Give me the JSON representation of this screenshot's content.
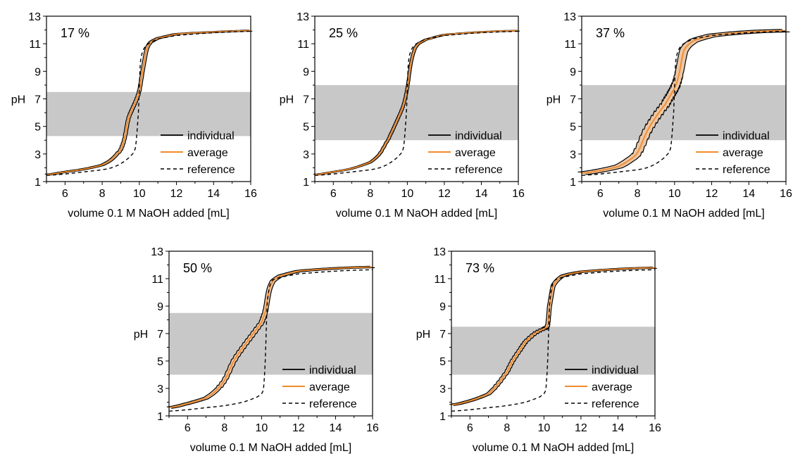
{
  "colors": {
    "individual": "#000000",
    "average": "#f08a2c",
    "reference": "#000000",
    "band": "#c8c8c8",
    "envelope": "#ecc7a6"
  },
  "chart_data": [
    {
      "type": "line",
      "title": "17 %",
      "xlabel": "volume 0.1 M NaOH added [mL]",
      "ylabel": "pH",
      "xlim": [
        5,
        16
      ],
      "ylim": [
        1,
        13
      ],
      "xticks": [
        "6",
        "8",
        "10",
        "12",
        "14",
        "16"
      ],
      "yticks": [
        "1",
        "3",
        "5",
        "7",
        "9",
        "11",
        "13"
      ],
      "shaded_band": [
        4.3,
        7.5
      ],
      "legend": [
        "individual",
        "average",
        "reference"
      ],
      "legend_position": "bottom-right",
      "series": [
        {
          "name": "average",
          "x": [
            5,
            6,
            7,
            8,
            8.5,
            9,
            9.2,
            9.4,
            9.6,
            9.8,
            10,
            10.2,
            10.4,
            10.6,
            11,
            12,
            14,
            16
          ],
          "y": [
            1.5,
            1.7,
            1.9,
            2.2,
            2.6,
            3.3,
            4.1,
            5.5,
            6.2,
            6.8,
            7.6,
            9.2,
            10.6,
            11.1,
            11.4,
            11.7,
            11.85,
            11.95
          ],
          "spread": 0.25
        },
        {
          "name": "reference",
          "x": [
            5,
            6,
            7,
            8,
            8.5,
            9,
            9.5,
            9.8,
            9.95,
            10.05,
            10.2,
            10.4,
            10.6,
            11,
            12,
            14,
            16
          ],
          "y": [
            1.45,
            1.55,
            1.7,
            1.85,
            2.0,
            2.3,
            2.8,
            3.5,
            6.0,
            9.5,
            10.5,
            10.9,
            11.1,
            11.35,
            11.6,
            11.8,
            11.9
          ]
        }
      ]
    },
    {
      "type": "line",
      "title": "25 %",
      "xlabel": "volume 0.1 M NaOH added [mL]",
      "ylabel": "pH",
      "xlim": [
        5,
        16
      ],
      "ylim": [
        1,
        13
      ],
      "xticks": [
        "6",
        "8",
        "10",
        "12",
        "14",
        "16"
      ],
      "yticks": [
        "1",
        "3",
        "5",
        "7",
        "9",
        "11",
        "13"
      ],
      "shaded_band": [
        4.0,
        8.0
      ],
      "legend": [
        "individual",
        "average",
        "reference"
      ],
      "legend_position": "bottom-right",
      "series": [
        {
          "name": "average",
          "x": [
            5,
            6,
            7,
            8,
            8.5,
            9,
            9.2,
            9.4,
            9.6,
            9.8,
            10,
            10.2,
            10.4,
            10.6,
            11,
            12,
            14,
            16
          ],
          "y": [
            1.5,
            1.7,
            1.95,
            2.4,
            3.0,
            4.1,
            4.7,
            5.3,
            5.9,
            6.6,
            7.8,
            9.6,
            10.6,
            11.0,
            11.3,
            11.65,
            11.85,
            11.95
          ],
          "spread": 0.2
        },
        {
          "name": "reference",
          "x": [
            5,
            6,
            7,
            8,
            8.5,
            9,
            9.5,
            9.8,
            9.95,
            10.05,
            10.2,
            10.4,
            10.6,
            11,
            12,
            14,
            16
          ],
          "y": [
            1.45,
            1.55,
            1.7,
            1.85,
            2.0,
            2.3,
            2.8,
            3.5,
            6.0,
            9.5,
            10.5,
            10.9,
            11.1,
            11.35,
            11.6,
            11.8,
            11.9
          ]
        }
      ]
    },
    {
      "type": "line",
      "title": "37 %",
      "xlabel": "volume 0.1 M NaOH added [mL]",
      "ylabel": "pH",
      "xlim": [
        5,
        16
      ],
      "ylim": [
        1,
        13
      ],
      "xticks": [
        "6",
        "8",
        "10",
        "12",
        "14",
        "16"
      ],
      "yticks": [
        "1",
        "3",
        "5",
        "7",
        "9",
        "11",
        "13"
      ],
      "shaded_band": [
        4.0,
        8.0
      ],
      "legend": [
        "individual",
        "average",
        "reference"
      ],
      "legend_position": "bottom-right",
      "series": [
        {
          "name": "average",
          "x": [
            5,
            6,
            7,
            7.5,
            8,
            8.5,
            9,
            9.5,
            9.8,
            10,
            10.2,
            10.5,
            11,
            12,
            14,
            16
          ],
          "y": [
            1.6,
            1.8,
            2.1,
            2.5,
            3.1,
            4.6,
            5.7,
            6.6,
            7.3,
            7.8,
            8.6,
            10.5,
            11.2,
            11.6,
            11.85,
            11.95
          ],
          "spread": 0.6
        },
        {
          "name": "reference",
          "x": [
            5,
            6,
            7,
            8,
            8.5,
            9,
            9.5,
            9.8,
            9.95,
            10.05,
            10.2,
            10.4,
            10.6,
            11,
            12,
            14,
            16
          ],
          "y": [
            1.45,
            1.55,
            1.7,
            1.85,
            2.0,
            2.3,
            2.8,
            3.5,
            6.0,
            9.5,
            10.5,
            10.9,
            11.1,
            11.35,
            11.6,
            11.8,
            11.9
          ]
        }
      ]
    },
    {
      "type": "line",
      "title": "50 %",
      "xlabel": "volume 0.1 M NaOH added [mL]",
      "ylabel": "pH",
      "xlim": [
        5,
        16
      ],
      "ylim": [
        1,
        13
      ],
      "xticks": [
        "6",
        "8",
        "10",
        "12",
        "14",
        "16"
      ],
      "yticks": [
        "1",
        "3",
        "5",
        "7",
        "9",
        "11",
        "13"
      ],
      "shaded_band": [
        4.0,
        8.5
      ],
      "legend": [
        "individual",
        "average",
        "reference"
      ],
      "legend_position": "bottom-right",
      "series": [
        {
          "name": "average",
          "x": [
            5,
            6,
            7,
            7.5,
            8,
            8.5,
            9,
            9.5,
            10,
            10.2,
            10.4,
            10.6,
            11,
            12,
            14,
            16
          ],
          "y": [
            1.6,
            1.9,
            2.3,
            2.8,
            3.6,
            5.0,
            6.0,
            6.9,
            7.8,
            8.6,
            10.1,
            10.8,
            11.2,
            11.55,
            11.75,
            11.85
          ],
          "spread": 0.35
        },
        {
          "name": "reference",
          "x": [
            5,
            6,
            7,
            8,
            9,
            9.8,
            10.1,
            10.2,
            10.3,
            10.45,
            10.6,
            11,
            12,
            14,
            16
          ],
          "y": [
            1.35,
            1.45,
            1.6,
            1.75,
            2.0,
            2.4,
            2.9,
            5.0,
            9.0,
            10.5,
            10.9,
            11.1,
            11.35,
            11.55,
            11.65
          ]
        }
      ]
    },
    {
      "type": "line",
      "title": "73 %",
      "xlabel": "volume 0.1 M NaOH added [mL]",
      "ylabel": "pH",
      "xlim": [
        5,
        16
      ],
      "ylim": [
        1,
        13
      ],
      "xticks": [
        "6",
        "8",
        "10",
        "12",
        "14",
        "16"
      ],
      "yticks": [
        "1",
        "3",
        "5",
        "7",
        "9",
        "11",
        "13"
      ],
      "shaded_band": [
        4.0,
        7.5
      ],
      "legend": [
        "individual",
        "average",
        "reference"
      ],
      "legend_position": "bottom-right",
      "series": [
        {
          "name": "average",
          "x": [
            5,
            6,
            7,
            7.5,
            8,
            8.3,
            8.7,
            9,
            9.5,
            10,
            10.2,
            10.3,
            10.5,
            11,
            12,
            14,
            16
          ],
          "y": [
            1.8,
            2.1,
            2.6,
            3.3,
            4.2,
            5.0,
            5.8,
            6.4,
            7.0,
            7.35,
            7.6,
            9.0,
            10.5,
            11.2,
            11.5,
            11.7,
            11.8
          ],
          "spread": 0.3
        },
        {
          "name": "reference",
          "x": [
            5,
            6,
            7,
            8,
            9,
            9.8,
            10.1,
            10.2,
            10.3,
            10.45,
            10.6,
            11,
            12,
            14,
            16
          ],
          "y": [
            1.35,
            1.45,
            1.6,
            1.75,
            2.0,
            2.4,
            2.9,
            5.0,
            9.0,
            10.5,
            10.9,
            11.1,
            11.35,
            11.55,
            11.65
          ]
        }
      ]
    }
  ]
}
